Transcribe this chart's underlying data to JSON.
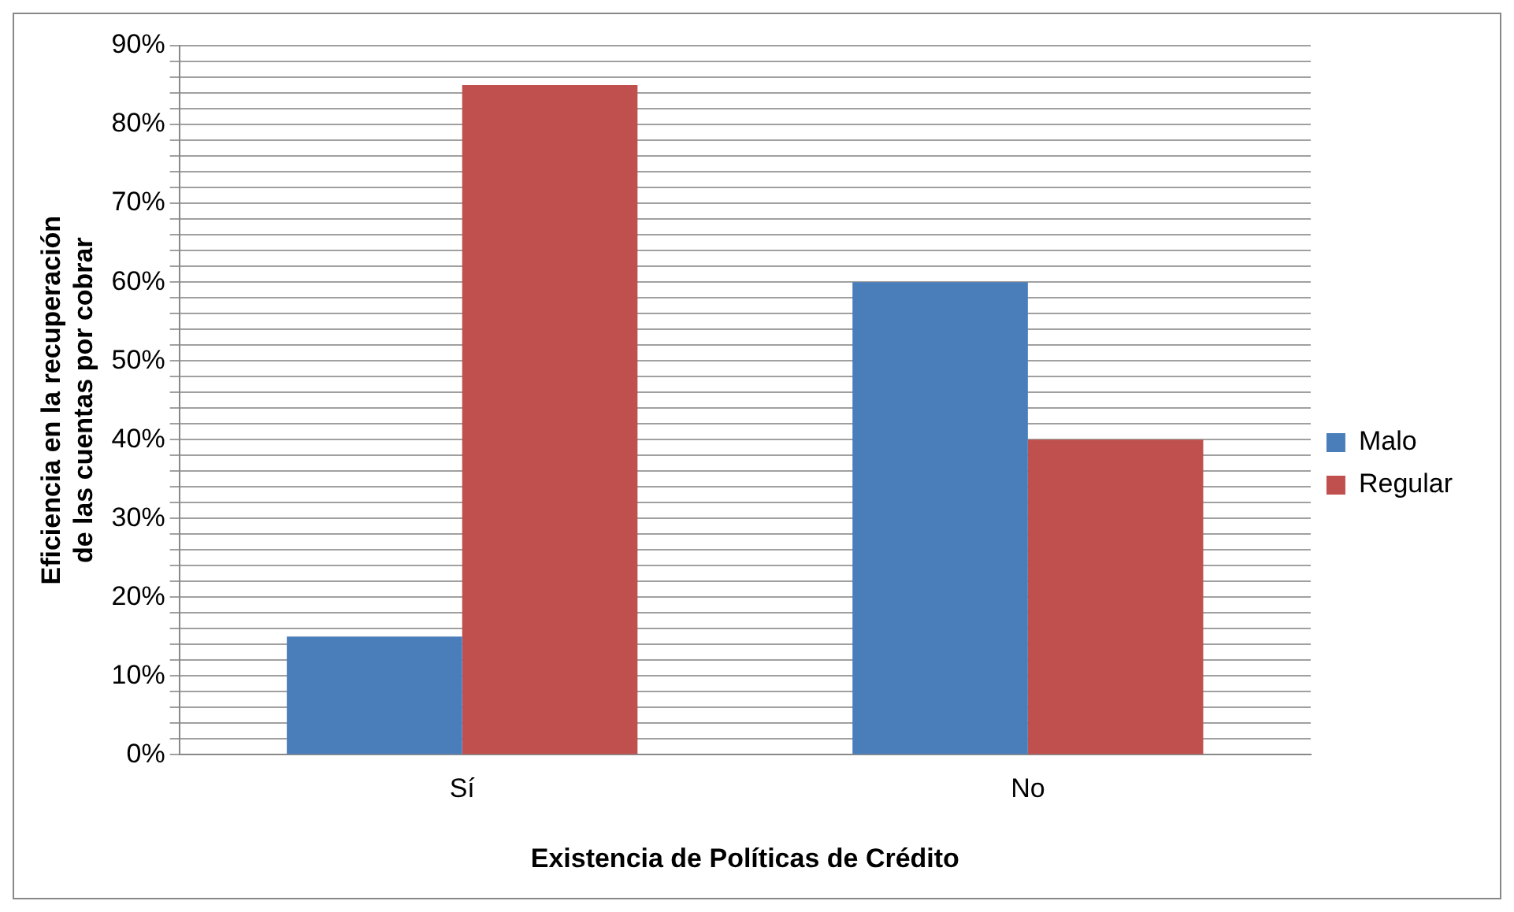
{
  "chart_data": {
    "type": "bar",
    "xlabel": "Existencia de Políticas de Crédito",
    "ylabel": "Eficiencia en la recuperación de las cuentas por cobrar",
    "categories": [
      "Sí",
      "No"
    ],
    "series": [
      {
        "name": "Malo",
        "color": "#4a7ebb",
        "values": [
          15,
          60
        ]
      },
      {
        "name": "Regular",
        "color": "#c0504d",
        "values": [
          85,
          40
        ]
      }
    ],
    "ylim": [
      0,
      90
    ],
    "yticks": [
      {
        "value": 0,
        "label": "0%"
      },
      {
        "value": 2,
        "label": null
      },
      {
        "value": 4,
        "label": null
      },
      {
        "value": 6,
        "label": null
      },
      {
        "value": 8,
        "label": null
      },
      {
        "value": 10,
        "label": "10%"
      },
      {
        "value": 12,
        "label": null
      },
      {
        "value": 14,
        "label": null
      },
      {
        "value": 16,
        "label": null
      },
      {
        "value": 18,
        "label": null
      },
      {
        "value": 20,
        "label": "20%"
      },
      {
        "value": 22,
        "label": null
      },
      {
        "value": 24,
        "label": null
      },
      {
        "value": 26,
        "label": null
      },
      {
        "value": 28,
        "label": null
      },
      {
        "value": 30,
        "label": "30%"
      },
      {
        "value": 32,
        "label": null
      },
      {
        "value": 34,
        "label": null
      },
      {
        "value": 36,
        "label": null
      },
      {
        "value": 38,
        "label": null
      },
      {
        "value": 40,
        "label": "40%"
      },
      {
        "value": 42,
        "label": null
      },
      {
        "value": 44,
        "label": null
      },
      {
        "value": 46,
        "label": null
      },
      {
        "value": 48,
        "label": null
      },
      {
        "value": 50,
        "label": "50%"
      },
      {
        "value": 52,
        "label": null
      },
      {
        "value": 54,
        "label": null
      },
      {
        "value": 56,
        "label": null
      },
      {
        "value": 58,
        "label": null
      },
      {
        "value": 60,
        "label": "60%"
      },
      {
        "value": 62,
        "label": null
      },
      {
        "value": 64,
        "label": null
      },
      {
        "value": 66,
        "label": null
      },
      {
        "value": 68,
        "label": null
      },
      {
        "value": 70,
        "label": "70%"
      },
      {
        "value": 72,
        "label": null
      },
      {
        "value": 74,
        "label": null
      },
      {
        "value": 76,
        "label": null
      },
      {
        "value": 78,
        "label": null
      },
      {
        "value": 80,
        "label": "80%"
      },
      {
        "value": 82,
        "label": null
      },
      {
        "value": 84,
        "label": null
      },
      {
        "value": 86,
        "label": null
      },
      {
        "value": 88,
        "label": null
      },
      {
        "value": 90,
        "label": "90%"
      }
    ],
    "grid": "y",
    "legend": "right"
  }
}
